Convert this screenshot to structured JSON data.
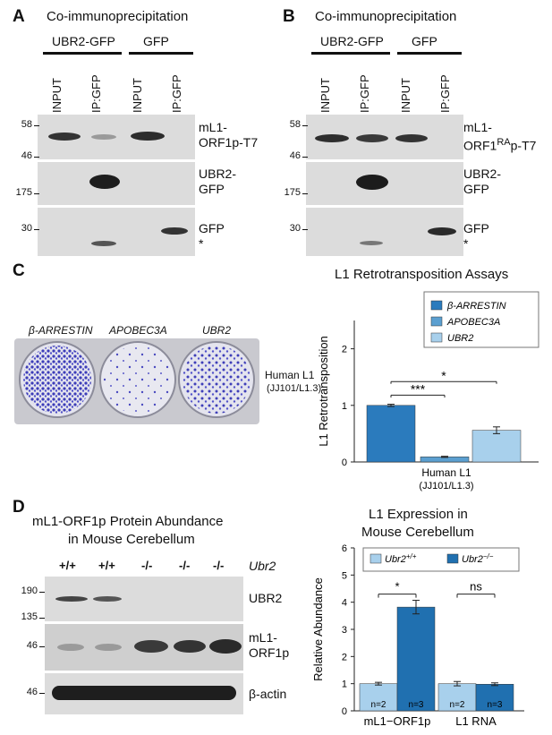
{
  "panel_a": {
    "letter": "A",
    "title": "Co-immunoprecipitation",
    "groups": [
      "UBR2-GFP",
      "GFP"
    ],
    "lanes": [
      "INPUT",
      "IP:GFP",
      "INPUT",
      "IP:GFP"
    ],
    "blots": [
      {
        "label_line1": "mL1-",
        "label_line2": "ORF1p-T7",
        "mw_top": "58",
        "mw_bottom": "46"
      },
      {
        "label_line1": "UBR2-",
        "label_line2": "GFP",
        "mw_top": "175",
        "mw_bottom": ""
      },
      {
        "label_line1": "GFP",
        "label_line2": "*",
        "mw_top": "30",
        "mw_bottom": ""
      }
    ]
  },
  "panel_b": {
    "letter": "B",
    "title": "Co-immunoprecipitation",
    "groups": [
      "UBR2-GFP",
      "GFP"
    ],
    "lanes": [
      "INPUT",
      "IP:GFP",
      "INPUT",
      "IP:GFP"
    ],
    "blots": [
      {
        "label_line1": "mL1-",
        "label_line2": "ORF1",
        "label_sup": "RA",
        "label_line2_tail": "p-T7",
        "mw_top": "58",
        "mw_bottom": "46"
      },
      {
        "label_line1": "UBR2-",
        "label_line2": "GFP",
        "mw_top": "175",
        "mw_bottom": ""
      },
      {
        "label_line1": "GFP",
        "label_line2": "*",
        "mw_top": "30",
        "mw_bottom": ""
      }
    ]
  },
  "panel_c": {
    "letter": "C",
    "plate_labels": [
      "β-ARRESTIN",
      "APOBEC3A",
      "UBR2"
    ],
    "plate_side_label_1": "Human L1",
    "plate_side_label_2": "(JJ101/L1.3)",
    "sig_outer": "*",
    "sig_inner": "***"
  },
  "panel_d": {
    "letter": "D",
    "blot_title_1": "mL1-ORF1p Protein Abundance",
    "blot_title_2": "in Mouse Cerebellum",
    "genotypes": [
      "+/+",
      "+/+",
      "-/-",
      "-/-",
      "-/-"
    ],
    "gene_label": "Ubr2",
    "blots": [
      {
        "label_line1": "UBR2",
        "label_line2": "",
        "mw_top": "190",
        "mw_bottom": "135"
      },
      {
        "label_line1": "mL1-",
        "label_line2": "ORF1p",
        "mw_top": "46",
        "mw_bottom": ""
      },
      {
        "label_line1": "β-actin",
        "label_line2": "",
        "mw_top": "46",
        "mw_bottom": ""
      }
    ],
    "sig_left": "*",
    "sig_right": "ns"
  },
  "chart_data": [
    {
      "type": "bar",
      "title": "L1 Retrotransposition Assays",
      "ylabel": "L1 Retrotransposition",
      "xlabel_1": "Human L1",
      "xlabel_2": "(JJ101/L1.3)",
      "ylim": [
        0,
        2.5
      ],
      "yticks": [
        "0",
        "1",
        "2"
      ],
      "categories": [
        "Human L1"
      ],
      "series": [
        {
          "name": "β-ARRESTIN",
          "values": [
            1.0
          ],
          "error": [
            0.02
          ],
          "color": "#2b7bbd"
        },
        {
          "name": "APOBEC3A",
          "values": [
            0.09
          ],
          "error": [
            0.01
          ],
          "color": "#5b9fd0"
        },
        {
          "name": "UBR2",
          "values": [
            0.56
          ],
          "error": [
            0.06
          ],
          "color": "#a8d0ec"
        }
      ],
      "legend_position": "top-right",
      "grid": false
    },
    {
      "type": "bar",
      "title": "L1 Expression in Mouse Cerebellum",
      "title_line1": "L1 Expression in",
      "title_line2": "Mouse Cerebellum",
      "ylabel": "Relative Abundance",
      "ylim": [
        0,
        6
      ],
      "yticks": [
        "0",
        "1",
        "2",
        "3",
        "4",
        "5",
        "6"
      ],
      "categories": [
        "mL1−ORF1p",
        "L1 RNA"
      ],
      "series": [
        {
          "name": "Ubr2",
          "name_sup": "+/+",
          "values": [
            1.0,
            1.0
          ],
          "error": [
            0.05,
            0.08
          ],
          "n": [
            "n=2",
            "n=2"
          ],
          "color": "#a8d0ec"
        },
        {
          "name": "Ubr2",
          "name_sup": "−/−",
          "values": [
            3.82,
            0.98
          ],
          "error": [
            0.25,
            0.05
          ],
          "n": [
            "n=3",
            "n=3"
          ],
          "color": "#2070b0"
        }
      ],
      "legend_position": "top",
      "grid": false
    }
  ]
}
